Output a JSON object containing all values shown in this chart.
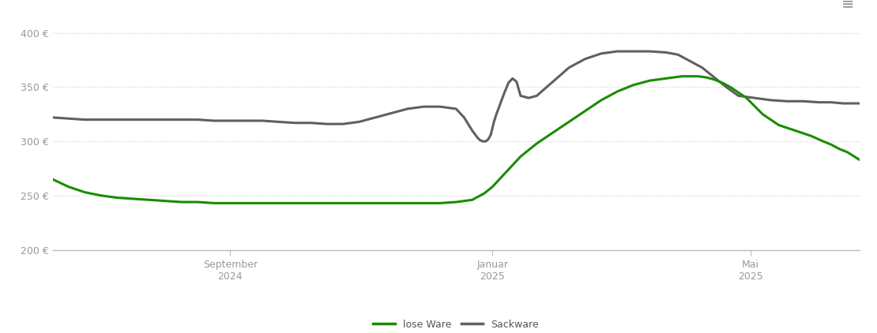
{
  "background_color": "#ffffff",
  "line_lose_ware_color": "#1a8c00",
  "line_sackware_color": "#606060",
  "line_width": 2.2,
  "ylim": [
    200,
    415
  ],
  "yticks": [
    200,
    250,
    300,
    350,
    400
  ],
  "grid_color": "#cccccc",
  "grid_linestyle": ":",
  "grid_linewidth": 0.8,
  "legend_labels": [
    "lose Ware",
    "Sackware"
  ],
  "legend_colors": [
    "#1a8c00",
    "#606060"
  ],
  "xtick_labels": [
    "September\n2024",
    "Januar\n2025",
    "Mai\n2025"
  ],
  "xtick_positions": [
    0.22,
    0.545,
    0.865
  ],
  "lose_ware_x": [
    0.0,
    0.02,
    0.04,
    0.06,
    0.08,
    0.1,
    0.12,
    0.14,
    0.16,
    0.18,
    0.2,
    0.22,
    0.24,
    0.26,
    0.28,
    0.3,
    0.32,
    0.34,
    0.36,
    0.38,
    0.4,
    0.42,
    0.44,
    0.46,
    0.48,
    0.5,
    0.52,
    0.525,
    0.53,
    0.535,
    0.54,
    0.545,
    0.55,
    0.555,
    0.56,
    0.565,
    0.57,
    0.575,
    0.58,
    0.59,
    0.6,
    0.62,
    0.64,
    0.66,
    0.68,
    0.7,
    0.72,
    0.74,
    0.76,
    0.78,
    0.79,
    0.8,
    0.81,
    0.82,
    0.83,
    0.84,
    0.86,
    0.88,
    0.9,
    0.92,
    0.94,
    0.955,
    0.965,
    0.975,
    0.985,
    1.0
  ],
  "lose_ware_y": [
    265,
    258,
    253,
    250,
    248,
    247,
    246,
    245,
    244,
    244,
    243,
    243,
    243,
    243,
    243,
    243,
    243,
    243,
    243,
    243,
    243,
    243,
    243,
    243,
    243,
    244,
    246,
    248,
    250,
    252,
    255,
    258,
    262,
    266,
    270,
    274,
    278,
    282,
    286,
    292,
    298,
    308,
    318,
    328,
    338,
    346,
    352,
    356,
    358,
    360,
    360,
    360,
    359,
    357,
    354,
    350,
    340,
    325,
    315,
    310,
    305,
    300,
    297,
    293,
    290,
    283
  ],
  "sackware_x": [
    0.0,
    0.02,
    0.04,
    0.06,
    0.08,
    0.1,
    0.12,
    0.14,
    0.16,
    0.18,
    0.2,
    0.22,
    0.24,
    0.26,
    0.28,
    0.3,
    0.32,
    0.34,
    0.36,
    0.38,
    0.4,
    0.42,
    0.44,
    0.46,
    0.48,
    0.5,
    0.51,
    0.52,
    0.527,
    0.53,
    0.533,
    0.537,
    0.54,
    0.543,
    0.547,
    0.55,
    0.555,
    0.56,
    0.565,
    0.57,
    0.575,
    0.58,
    0.59,
    0.6,
    0.62,
    0.64,
    0.66,
    0.68,
    0.7,
    0.72,
    0.74,
    0.76,
    0.775,
    0.785,
    0.795,
    0.805,
    0.815,
    0.825,
    0.835,
    0.85,
    0.87,
    0.89,
    0.91,
    0.93,
    0.95,
    0.965,
    0.98,
    1.0
  ],
  "sackware_y": [
    322,
    321,
    320,
    320,
    320,
    320,
    320,
    320,
    320,
    320,
    319,
    319,
    319,
    319,
    318,
    317,
    317,
    316,
    316,
    318,
    322,
    326,
    330,
    332,
    332,
    330,
    322,
    310,
    303,
    301,
    300,
    300,
    302,
    306,
    318,
    325,
    335,
    345,
    354,
    358,
    355,
    342,
    340,
    342,
    355,
    368,
    376,
    381,
    383,
    383,
    383,
    382,
    380,
    376,
    372,
    368,
    362,
    356,
    350,
    342,
    340,
    338,
    337,
    337,
    336,
    336,
    335,
    335
  ]
}
